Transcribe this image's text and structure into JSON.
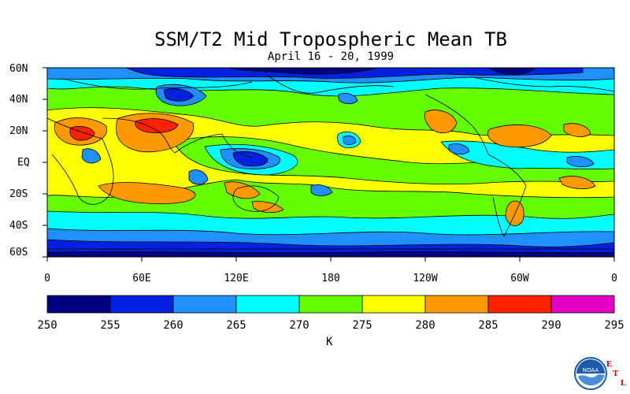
{
  "title": "SSM/T2 Mid Tropospheric Mean TB",
  "subtitle": "April 16 - 20, 1999",
  "lat_labels": [
    "60N",
    "40N",
    "20N",
    "EQ",
    "20S",
    "40S",
    "60S"
  ],
  "lon_labels": [
    "0",
    "60E",
    "120E",
    "180",
    "120W",
    "60W",
    "0"
  ],
  "colorbar": {
    "ticks": [
      "250",
      "255",
      "260",
      "265",
      "270",
      "275",
      "280",
      "285",
      "290",
      "295"
    ],
    "unit": "K",
    "colors": [
      "#000080",
      "#0022e0",
      "#1e90ff",
      "#00ffff",
      "#66ff00",
      "#ffff00",
      "#ff9900",
      "#ff2200",
      "#e000c0"
    ]
  },
  "logo": {
    "text": "NOAA",
    "letters": [
      "E",
      "T",
      "L"
    ]
  }
}
